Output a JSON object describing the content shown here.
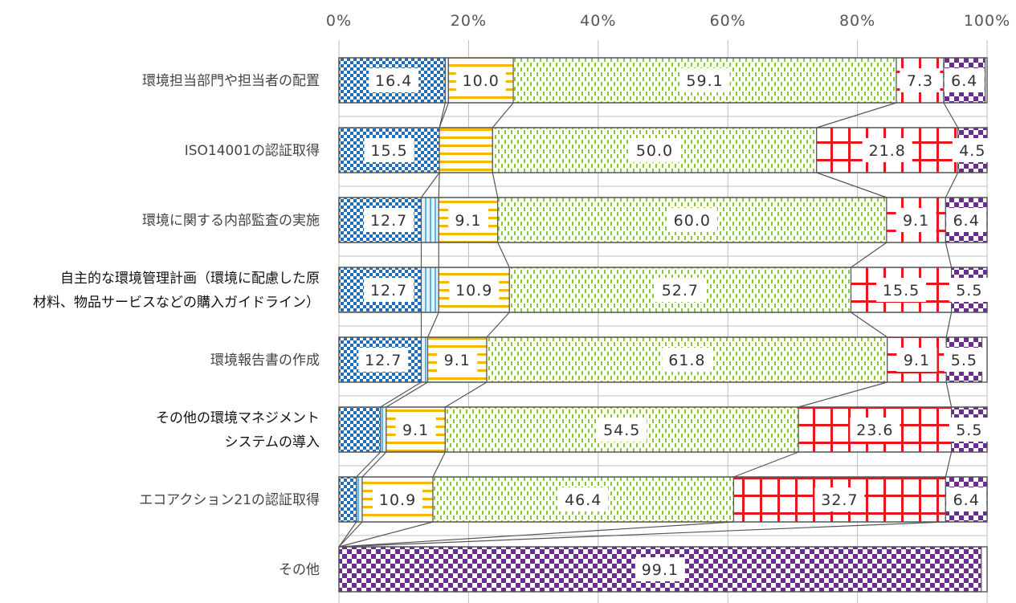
{
  "chart_data": {
    "type": "bar",
    "stacked": true,
    "orientation": "horizontal",
    "percent_stacked": true,
    "xlim": [
      0,
      100
    ],
    "x_ticks": [
      "0%",
      "20%",
      "40%",
      "60%",
      "80%",
      "100%"
    ],
    "grid": true,
    "legend": "none",
    "categories": [
      [
        "環境担当部門や担当者の配置"
      ],
      [
        "ISO14001の認証取得"
      ],
      [
        "環境に関する内部監査の実施"
      ],
      [
        "自主的な環境管理計画（環境に配慮した原",
        "材料、物品サービスなどの購入ガイドライン）"
      ],
      [
        "環境報告書の作成"
      ],
      [
        "その他の環境マネジメント",
        "システムの導入"
      ],
      [
        "エコアクション21の認証取得"
      ],
      [
        "その他"
      ]
    ],
    "series": [
      {
        "values": [
          16.4,
          15.5,
          12.7,
          12.7,
          12.7,
          6.4,
          2.7,
          0.0
        ]
      },
      {
        "values": [
          0.5,
          0.0,
          2.7,
          2.7,
          1.0,
          0.9,
          0.9,
          0.0
        ]
      },
      {
        "values": [
          10.0,
          8.2,
          9.1,
          10.9,
          9.1,
          9.1,
          10.9,
          0.0
        ]
      },
      {
        "values": [
          59.1,
          50.0,
          60.0,
          52.7,
          61.8,
          54.5,
          46.4,
          0.0
        ]
      },
      {
        "values": [
          7.3,
          21.8,
          9.1,
          15.5,
          9.1,
          23.6,
          32.7,
          0.0
        ]
      },
      {
        "values": [
          6.4,
          4.5,
          6.4,
          5.5,
          5.5,
          5.5,
          6.4,
          99.1
        ]
      }
    ],
    "data_labels": [
      [
        "16.4",
        "10.0",
        "59.1",
        "7.3",
        "6.4"
      ],
      [
        "15.5",
        "",
        "50.0",
        "21.8",
        "4.5"
      ],
      [
        "12.7",
        "9.1",
        "60.0",
        "9.1",
        "6.4"
      ],
      [
        "12.7",
        "10.9",
        "52.7",
        "15.5",
        "5.5"
      ],
      [
        "12.7",
        "9.1",
        "61.8",
        "9.1",
        "5.5"
      ],
      [
        "",
        "9.1",
        "54.5",
        "23.6",
        "5.5"
      ],
      [
        "",
        "10.9",
        "46.4",
        "32.7",
        "6.4"
      ],
      [
        "",
        "",
        "",
        "",
        "99.1"
      ]
    ],
    "colors": [
      "#1f6fb8",
      "#5bb3e6",
      "#f2b800",
      "#8cc63f",
      "#e8171b",
      "#6a2c91"
    ]
  }
}
